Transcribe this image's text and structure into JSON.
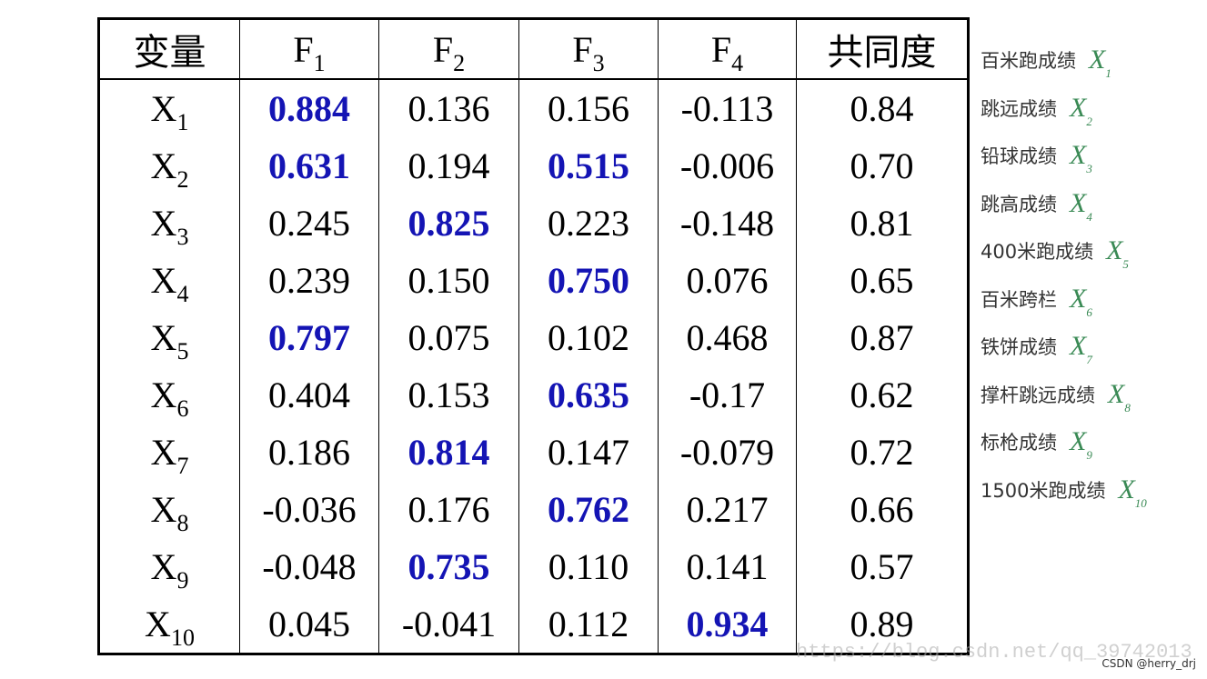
{
  "table": {
    "header": [
      {
        "main": "变量"
      },
      {
        "main": "F",
        "sub": "1"
      },
      {
        "main": "F",
        "sub": "2"
      },
      {
        "main": "F",
        "sub": "3"
      },
      {
        "main": "F",
        "sub": "4"
      },
      {
        "main": "共同度"
      }
    ],
    "rows": [
      {
        "var": "X",
        "sub": "1",
        "cells": [
          {
            "text": "0.884",
            "highlight": true
          },
          {
            "text": "0.136",
            "highlight": false
          },
          {
            "text": "0.156",
            "highlight": false
          },
          {
            "text": "-0.113",
            "highlight": false
          },
          {
            "text": "0.84",
            "highlight": false
          }
        ]
      },
      {
        "var": "X",
        "sub": "2",
        "cells": [
          {
            "text": "0.631",
            "highlight": true
          },
          {
            "text": "0.194",
            "highlight": false
          },
          {
            "text": "0.515",
            "highlight": true
          },
          {
            "text": "-0.006",
            "highlight": false
          },
          {
            "text": "0.70",
            "highlight": false
          }
        ]
      },
      {
        "var": "X",
        "sub": "3",
        "cells": [
          {
            "text": "0.245",
            "highlight": false
          },
          {
            "text": "0.825",
            "highlight": true
          },
          {
            "text": "0.223",
            "highlight": false
          },
          {
            "text": "-0.148",
            "highlight": false
          },
          {
            "text": "0.81",
            "highlight": false
          }
        ]
      },
      {
        "var": "X",
        "sub": "4",
        "cells": [
          {
            "text": "0.239",
            "highlight": false
          },
          {
            "text": "0.150",
            "highlight": false
          },
          {
            "text": "0.750",
            "highlight": true
          },
          {
            "text": "0.076",
            "highlight": false
          },
          {
            "text": "0.65",
            "highlight": false
          }
        ]
      },
      {
        "var": "X",
        "sub": "5",
        "cells": [
          {
            "text": "0.797",
            "highlight": true
          },
          {
            "text": "0.075",
            "highlight": false
          },
          {
            "text": "0.102",
            "highlight": false
          },
          {
            "text": "0.468",
            "highlight": false
          },
          {
            "text": "0.87",
            "highlight": false
          }
        ]
      },
      {
        "var": "X",
        "sub": "6",
        "cells": [
          {
            "text": "0.404",
            "highlight": false
          },
          {
            "text": "0.153",
            "highlight": false
          },
          {
            "text": "0.635",
            "highlight": true
          },
          {
            "text": "-0.17",
            "highlight": false
          },
          {
            "text": "0.62",
            "highlight": false
          }
        ]
      },
      {
        "var": "X",
        "sub": "7",
        "cells": [
          {
            "text": "0.186",
            "highlight": false
          },
          {
            "text": "0.814",
            "highlight": true
          },
          {
            "text": "0.147",
            "highlight": false
          },
          {
            "text": "-0.079",
            "highlight": false
          },
          {
            "text": "0.72",
            "highlight": false
          }
        ]
      },
      {
        "var": "X",
        "sub": "8",
        "cells": [
          {
            "text": "-0.036",
            "highlight": false
          },
          {
            "text": "0.176",
            "highlight": false
          },
          {
            "text": "0.762",
            "highlight": true
          },
          {
            "text": "0.217",
            "highlight": false
          },
          {
            "text": "0.66",
            "highlight": false
          }
        ]
      },
      {
        "var": "X",
        "sub": "9",
        "cells": [
          {
            "text": "-0.048",
            "highlight": false
          },
          {
            "text": "0.735",
            "highlight": true
          },
          {
            "text": "0.110",
            "highlight": false
          },
          {
            "text": "0.141",
            "highlight": false
          },
          {
            "text": "0.57",
            "highlight": false
          }
        ]
      },
      {
        "var": "X",
        "sub": "10",
        "cells": [
          {
            "text": "0.045",
            "highlight": false
          },
          {
            "text": "-0.041",
            "highlight": false
          },
          {
            "text": "0.112",
            "highlight": false
          },
          {
            "text": "0.934",
            "highlight": true
          },
          {
            "text": "0.89",
            "highlight": false
          }
        ]
      }
    ],
    "highlight_color": "#1414b4"
  },
  "legend": {
    "color": "#3a8a55",
    "items": [
      {
        "label": "百米跑成绩",
        "var": "X",
        "sub": "1"
      },
      {
        "label": "跳远成绩",
        "var": "X",
        "sub": "2"
      },
      {
        "label": "铅球成绩",
        "var": "X",
        "sub": "3"
      },
      {
        "label": "跳高成绩",
        "var": "X",
        "sub": "4"
      },
      {
        "label": "400米跑成绩",
        "var": "X",
        "sub": "5"
      },
      {
        "label": "百米跨栏",
        "var": "X",
        "sub": "6"
      },
      {
        "label": "铁饼成绩",
        "var": "X",
        "sub": "7"
      },
      {
        "label": "撑杆跳远成绩",
        "var": "X",
        "sub": "8"
      },
      {
        "label": "标枪成绩",
        "var": "X",
        "sub": "9"
      },
      {
        "label": "1500米跑成绩",
        "var": "X",
        "sub": "10"
      }
    ]
  },
  "watermark": "https://blog.csdn.net/qq_39742013",
  "credit": "CSDN @herry_drj"
}
